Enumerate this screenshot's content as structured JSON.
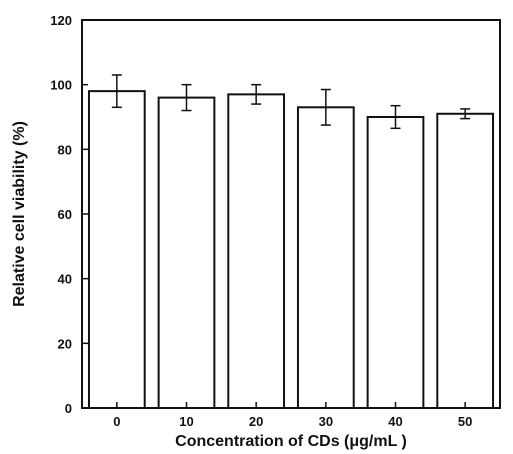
{
  "chart_data": {
    "type": "bar",
    "title": "",
    "xlabel": "Concentration of CDs (μg/mL )",
    "ylabel": "Relative cell viability (%)",
    "categories": [
      "0",
      "10",
      "20",
      "30",
      "40",
      "50"
    ],
    "values": [
      98,
      96,
      97,
      93,
      90,
      91
    ],
    "errors": [
      5,
      4,
      3,
      5.5,
      3.5,
      1.5
    ],
    "ylim": [
      0,
      120
    ],
    "yticks": [
      "0",
      "20",
      "40",
      "60",
      "80",
      "100",
      "120"
    ],
    "grid": false,
    "legend": "none",
    "colors": {
      "bar_fill": "#ffffff",
      "bar_stroke": "#111111",
      "axis": "#111111"
    }
  }
}
